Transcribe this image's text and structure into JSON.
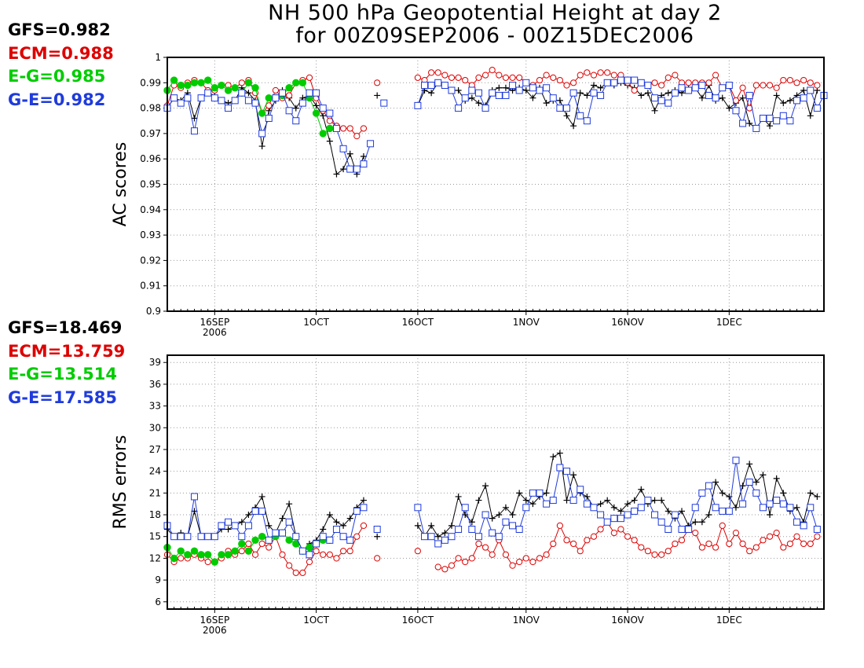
{
  "title": {
    "line1": "NH 500 hPa Geopotential Height at day 2",
    "line2": "for 00Z09SEP2006 - 00Z15DEC2006"
  },
  "colors": {
    "GFS": "#000000",
    "ECM": "#dd0000",
    "E-G": "#00cc00",
    "G-E": "#1f3bdb"
  },
  "legend_ac": [
    {
      "text": "GFS=0.982",
      "series": "GFS"
    },
    {
      "text": "ECM=0.988",
      "series": "ECM"
    },
    {
      "text": "E-G=0.985",
      "series": "E-G"
    },
    {
      "text": "G-E=0.982",
      "series": "G-E"
    }
  ],
  "legend_rms": [
    {
      "text": "GFS=18.469",
      "series": "GFS"
    },
    {
      "text": "ECM=13.759",
      "series": "ECM"
    },
    {
      "text": "E-G=13.514",
      "series": "E-G"
    },
    {
      "text": "G-E=17.585",
      "series": "G-E"
    }
  ],
  "chart_data": [
    {
      "type": "line",
      "title": "AC scores",
      "ylabel": "AC scores",
      "xlabel": "",
      "ylim": [
        0.9,
        1.0
      ],
      "yticks": [
        "0.9",
        "0.91",
        "0.92",
        "0.93",
        "0.94",
        "0.95",
        "0.96",
        "0.97",
        "0.98",
        "0.99",
        "1"
      ],
      "xlim_days": [
        0,
        97
      ],
      "xticks": [
        {
          "day": 7,
          "label": "16SEP",
          "sub": "2006"
        },
        {
          "day": 22,
          "label": "1OCT"
        },
        {
          "day": 37,
          "label": "16OCT"
        },
        {
          "day": 53,
          "label": "1NOV"
        },
        {
          "day": 68,
          "label": "16NOV"
        },
        {
          "day": 83,
          "label": "1DEC"
        }
      ],
      "grid": true,
      "series": [
        {
          "name": "GFS",
          "marker": "plus",
          "values": [
            0.98,
            0.984,
            0.983,
            0.986,
            0.976,
            0.984,
            0.986,
            0.985,
            0.983,
            0.982,
            0.983,
            0.988,
            0.986,
            0.983,
            0.965,
            0.979,
            0.983,
            0.987,
            0.984,
            0.98,
            0.984,
            0.985,
            0.981,
            0.977,
            0.967,
            0.954,
            0.956,
            0.962,
            0.954,
            0.961,
            null,
            0.985,
            null,
            null,
            null,
            null,
            null,
            0.981,
            0.987,
            0.986,
            0.99,
            0.989,
            0.987,
            0.987,
            0.983,
            0.984,
            0.982,
            0.981,
            0.987,
            0.988,
            0.988,
            0.987,
            0.988,
            0.987,
            0.984,
            0.988,
            0.982,
            0.983,
            0.983,
            0.977,
            0.973,
            0.986,
            0.985,
            0.989,
            0.988,
            0.99,
            0.989,
            0.99,
            0.989,
            0.988,
            0.985,
            0.986,
            0.979,
            0.985,
            0.986,
            0.987,
            0.986,
            0.988,
            0.988,
            0.984,
            0.989,
            0.983,
            0.984,
            0.98,
            0.982,
            0.984,
            0.974,
            0.972,
            0.976,
            0.973,
            0.985,
            0.982,
            0.983,
            0.985,
            0.987,
            0.977,
            0.987
          ],
          "summary_ac": 0.982
        },
        {
          "name": "ECM",
          "marker": "circle",
          "values": [
            0.981,
            0.989,
            0.988,
            0.99,
            0.991,
            0.99,
            0.987,
            0.987,
            0.989,
            0.989,
            0.988,
            0.99,
            0.991,
            0.986,
            0.978,
            0.981,
            0.987,
            0.984,
            0.985,
            0.99,
            0.991,
            0.992,
            0.984,
            0.979,
            0.975,
            0.973,
            0.972,
            0.972,
            0.969,
            0.972,
            null,
            0.99,
            null,
            null,
            null,
            null,
            null,
            0.992,
            0.991,
            0.994,
            0.994,
            0.993,
            0.992,
            0.992,
            0.991,
            0.989,
            0.992,
            0.993,
            0.995,
            0.993,
            0.992,
            0.992,
            0.992,
            0.99,
            0.989,
            0.991,
            0.993,
            0.992,
            0.991,
            0.989,
            0.99,
            0.993,
            0.994,
            0.993,
            0.994,
            0.994,
            0.993,
            0.993,
            0.99,
            0.987,
            0.99,
            0.989,
            0.99,
            0.989,
            0.992,
            0.993,
            0.99,
            0.99,
            0.99,
            0.99,
            0.99,
            0.993,
            0.988,
            0.989,
            0.983,
            0.988,
            0.98,
            0.989,
            0.989,
            0.989,
            0.988,
            0.991,
            0.991,
            0.99,
            0.991,
            0.99,
            0.989
          ]
        },
        {
          "name": "E-G",
          "marker": "filled-circle",
          "values": [
            0.987,
            0.991,
            0.989,
            0.989,
            0.99,
            0.99,
            0.991,
            0.988,
            0.989,
            0.987,
            0.988,
            0.986,
            0.99,
            0.988,
            0.978,
            0.984,
            0.984,
            0.985,
            0.988,
            0.99,
            0.99,
            0.984,
            0.978,
            0.97,
            0.972,
            null,
            null,
            null,
            null,
            null,
            null,
            null,
            null,
            null,
            null,
            null,
            null,
            null,
            null,
            null,
            null,
            null,
            null,
            null,
            null,
            null,
            null,
            null,
            null,
            null,
            null,
            null,
            null,
            null,
            null,
            null,
            null,
            null,
            null,
            null,
            null,
            null,
            null,
            null,
            null,
            null,
            null,
            null,
            null,
            null,
            null,
            null,
            null,
            null,
            null,
            null,
            null,
            null,
            null,
            null,
            null,
            null,
            null,
            null,
            null,
            null,
            null,
            null,
            null,
            null,
            null,
            null,
            null,
            null,
            null,
            null,
            null
          ]
        },
        {
          "name": "G-E",
          "marker": "square",
          "values": [
            0.98,
            0.984,
            0.982,
            0.984,
            0.971,
            0.984,
            0.986,
            0.984,
            0.983,
            0.98,
            0.983,
            0.986,
            0.983,
            0.982,
            0.97,
            0.976,
            0.984,
            0.986,
            0.979,
            0.975,
            0.982,
            0.986,
            0.986,
            0.98,
            0.978,
            0.972,
            0.964,
            0.956,
            0.956,
            0.958,
            0.966,
            null,
            0.982,
            null,
            null,
            null,
            null,
            0.981,
            0.989,
            0.989,
            0.99,
            0.989,
            0.987,
            0.98,
            0.984,
            0.987,
            0.986,
            0.98,
            0.986,
            0.985,
            0.985,
            0.989,
            0.987,
            0.99,
            0.988,
            0.987,
            0.988,
            0.984,
            0.98,
            0.98,
            0.986,
            0.977,
            0.975,
            0.986,
            0.985,
            0.99,
            0.99,
            0.991,
            0.991,
            0.991,
            0.99,
            0.989,
            0.984,
            0.983,
            0.982,
            0.986,
            0.988,
            0.987,
            0.988,
            0.989,
            0.985,
            0.984,
            0.988,
            0.989,
            0.979,
            0.974,
            0.985,
            0.972,
            0.976,
            0.976,
            0.975,
            0.977,
            0.975,
            0.983,
            0.984,
            0.987,
            0.98,
            0.985
          ]
        }
      ]
    },
    {
      "type": "line",
      "title": "RMS errors",
      "ylabel": "RMS errors",
      "xlabel": "",
      "ylim": [
        5,
        40
      ],
      "yticks": [
        "6",
        "9",
        "12",
        "15",
        "18",
        "21",
        "24",
        "27",
        "30",
        "33",
        "36",
        "39"
      ],
      "ytick_values": [
        6,
        9,
        12,
        15,
        18,
        21,
        24,
        27,
        30,
        33,
        36,
        39
      ],
      "xlim_days": [
        0,
        97
      ],
      "xticks": [
        {
          "day": 7,
          "label": "16SEP",
          "sub": "2006"
        },
        {
          "day": 22,
          "label": "1OCT"
        },
        {
          "day": 37,
          "label": "16OCT"
        },
        {
          "day": 53,
          "label": "1NOV"
        },
        {
          "day": 68,
          "label": "16NOV"
        },
        {
          "day": 83,
          "label": "1DEC"
        }
      ],
      "grid": true,
      "series": [
        {
          "name": "GFS",
          "marker": "plus",
          "values": [
            16.0,
            15.0,
            15.5,
            15.0,
            18.5,
            15.0,
            15.0,
            15.0,
            16.0,
            16.0,
            16.5,
            17.0,
            18.0,
            19.0,
            20.5,
            16.5,
            15.5,
            17.5,
            19.5,
            15.0,
            13.0,
            14.0,
            14.5,
            16.0,
            18.0,
            17.0,
            16.5,
            17.5,
            19.0,
            20.0,
            null,
            15.0,
            null,
            null,
            null,
            null,
            null,
            16.5,
            15.0,
            16.5,
            15.0,
            15.5,
            16.5,
            20.5,
            18.0,
            17.0,
            20.0,
            22.0,
            17.5,
            18.0,
            19.0,
            18.0,
            21.0,
            20.0,
            19.5,
            20.5,
            21.0,
            26.0,
            26.5,
            20.0,
            23.5,
            21.0,
            20.5,
            19.0,
            19.5,
            20.0,
            19.0,
            18.5,
            19.5,
            20.0,
            21.5,
            19.5,
            20.0,
            20.0,
            18.5,
            17.5,
            18.5,
            16.5,
            17.0,
            17.0,
            18.0,
            22.5,
            21.0,
            20.5,
            19.0,
            22.0,
            25.0,
            22.5,
            23.5,
            18.0,
            23.0,
            21.0,
            18.5,
            19.0,
            17.0,
            21.0,
            20.5
          ]
        },
        {
          "name": "ECM",
          "marker": "circle",
          "values": [
            12.5,
            11.5,
            12.0,
            12.0,
            12.5,
            12.0,
            11.5,
            11.5,
            12.0,
            13.0,
            12.5,
            13.0,
            14.0,
            12.5,
            14.0,
            13.5,
            15.0,
            12.5,
            11.0,
            10.0,
            10.0,
            11.5,
            13.0,
            12.5,
            12.5,
            12.0,
            13.0,
            13.0,
            15.0,
            16.5,
            null,
            12.0,
            null,
            null,
            null,
            null,
            null,
            13.0,
            null,
            null,
            10.8,
            10.5,
            11.0,
            12.0,
            11.5,
            12.0,
            14.0,
            13.5,
            12.5,
            14.5,
            12.5,
            11.0,
            11.5,
            12.0,
            11.5,
            12.0,
            12.5,
            14.0,
            16.5,
            14.5,
            14.0,
            13.0,
            14.5,
            15.0,
            16.0,
            17.0,
            15.5,
            16.0,
            15.0,
            14.5,
            13.5,
            13.0,
            12.5,
            12.5,
            13.0,
            14.0,
            14.5,
            16.0,
            15.5,
            13.5,
            14.0,
            13.5,
            16.5,
            14.0,
            15.5,
            14.0,
            13.0,
            13.5,
            14.5,
            15.0,
            15.5,
            13.5,
            14.0,
            15.0,
            14.0,
            14.0,
            15.0
          ]
        },
        {
          "name": "E-G",
          "marker": "filled-circle",
          "values": [
            13.5,
            12.0,
            13.0,
            12.5,
            13.0,
            12.5,
            12.5,
            11.5,
            12.5,
            12.5,
            13.0,
            14.0,
            13.0,
            14.5,
            15.0,
            14.5,
            15.0,
            15.5,
            14.5,
            14.0,
            13.0,
            13.5,
            14.0,
            14.5,
            14.5,
            null,
            null,
            null,
            null,
            null,
            null,
            null,
            null,
            null,
            null,
            null,
            null,
            null,
            null,
            null,
            null,
            null,
            null,
            null,
            null,
            null,
            null,
            null,
            null,
            null,
            null,
            null,
            null,
            null,
            null,
            null,
            null,
            null,
            null,
            null,
            null,
            null,
            null,
            null,
            null,
            null,
            null,
            null,
            null,
            null,
            null,
            null,
            null,
            null,
            null,
            null,
            null,
            null,
            null,
            null,
            null,
            null,
            null,
            null,
            null,
            null,
            null,
            null,
            null,
            null,
            null,
            null,
            null,
            null,
            null,
            null,
            null
          ]
        },
        {
          "name": "G-E",
          "marker": "square",
          "values": [
            16.5,
            15.0,
            15.0,
            15.0,
            20.5,
            15.0,
            15.0,
            15.0,
            16.5,
            17.0,
            16.5,
            15.0,
            16.5,
            18.5,
            18.5,
            14.5,
            15.5,
            15.5,
            17.0,
            15.0,
            13.0,
            12.5,
            14.0,
            15.0,
            14.5,
            16.0,
            15.0,
            14.5,
            18.5,
            19.0,
            null,
            16.0,
            null,
            null,
            null,
            null,
            null,
            19.0,
            15.0,
            15.0,
            14.0,
            14.5,
            15.0,
            16.0,
            19.0,
            16.0,
            15.0,
            18.0,
            15.5,
            15.0,
            17.0,
            16.5,
            16.0,
            19.0,
            21.0,
            21.0,
            19.5,
            20.0,
            24.5,
            24.0,
            20.0,
            21.5,
            19.5,
            19.0,
            18.0,
            17.0,
            17.5,
            17.5,
            18.0,
            18.5,
            19.0,
            20.0,
            18.0,
            17.0,
            16.0,
            18.0,
            16.0,
            16.0,
            19.0,
            21.0,
            22.0,
            19.0,
            18.5,
            18.5,
            25.5,
            19.5,
            22.5,
            21.0,
            19.0,
            19.5,
            20.0,
            19.5,
            19.0,
            17.0,
            16.5,
            19.0,
            16.0
          ]
        }
      ]
    }
  ]
}
